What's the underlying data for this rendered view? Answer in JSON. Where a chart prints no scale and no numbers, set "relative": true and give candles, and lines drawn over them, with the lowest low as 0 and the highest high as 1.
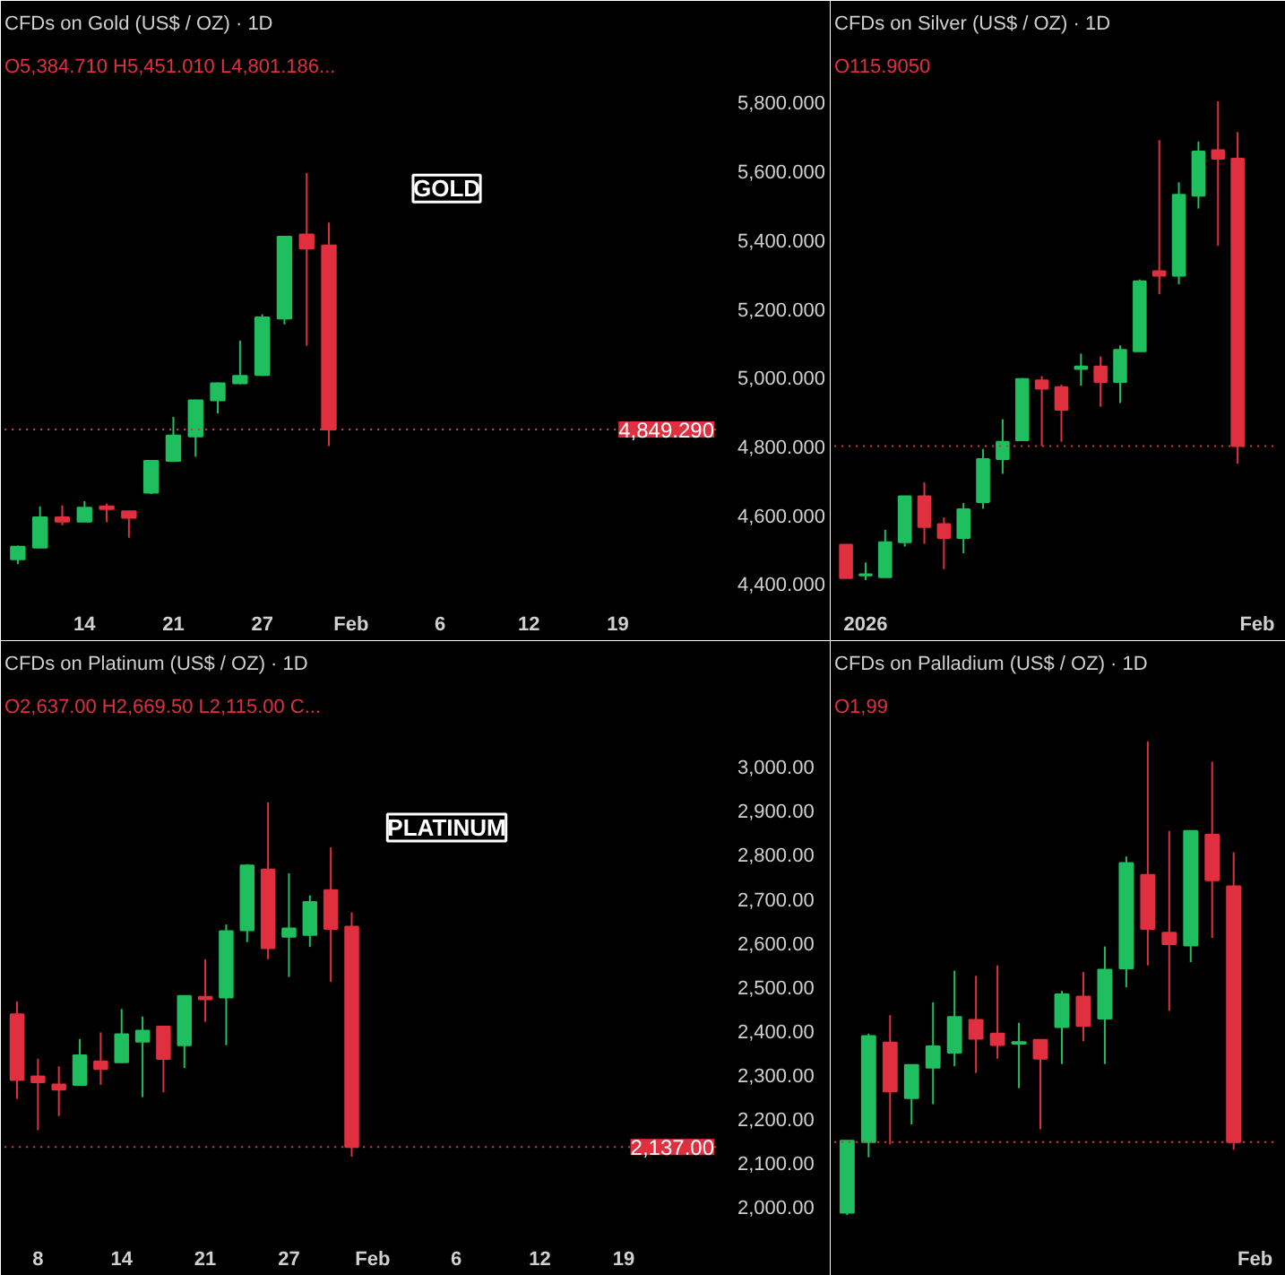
{
  "chart_data": [
    {
      "type": "candlestick",
      "title": "CFDs on Gold (US$ / OZ) · 1D",
      "subtitle": "O5,384.710 H5,451.010 L4,801.186...",
      "categories": [
        null,
        null,
        null,
        "14",
        null,
        null,
        null,
        "21",
        null,
        null,
        null,
        "27",
        null,
        null,
        null,
        "Feb",
        null,
        null,
        null,
        "6",
        null,
        null,
        null,
        "12",
        null,
        null,
        null,
        "19"
      ],
      "ohlc": [
        [
          4472,
          4512,
          4458,
          4509
        ],
        [
          4506,
          4626,
          4504,
          4594
        ],
        [
          4594,
          4629,
          4571,
          4582
        ],
        [
          4582,
          4641,
          4580,
          4622
        ],
        [
          4626,
          4634,
          4580,
          4618
        ],
        [
          4612,
          4614,
          4535,
          4593
        ],
        [
          4666,
          4761,
          4662,
          4758
        ],
        [
          4758,
          4886,
          4755,
          4832
        ],
        [
          4829,
          4936,
          4770,
          4934
        ],
        [
          4934,
          4986,
          4896,
          4984
        ],
        [
          4984,
          5108,
          4981,
          5005
        ],
        [
          5008,
          5184,
          5005,
          5175
        ],
        [
          5172,
          5412,
          5155,
          5410
        ],
        [
          5416,
          5595,
          5093,
          5375
        ],
        [
          5384.71,
          5451.01,
          4801.186,
          4849.29
        ],
        null,
        null,
        null,
        null,
        null,
        null,
        null,
        null,
        null,
        null,
        null,
        null,
        null
      ],
      "colors": [
        "#1fbf5f",
        "#1fbf5f",
        "#e0303f",
        "#1fbf5f",
        "#e0303f",
        "#e0303f",
        "#1fbf5f",
        "#1fbf5f",
        "#1fbf5f",
        "#1fbf5f",
        "#1fbf5f",
        "#1fbf5f",
        "#1fbf5f",
        "#e0303f",
        "#e0303f",
        null,
        null,
        null,
        null,
        null,
        null,
        null,
        null,
        null,
        null,
        null,
        null,
        null
      ],
      "ylim": [
        4370,
        5845
      ],
      "yticks": [
        {
          "value": 4400,
          "label": "4,400.000"
        },
        {
          "value": 4600,
          "label": "4,600.000"
        },
        {
          "value": 4800,
          "label": "4,800.000"
        },
        {
          "value": 5000,
          "label": "5,000.000"
        },
        {
          "value": 5200,
          "label": "5,200.000"
        },
        {
          "value": 5400,
          "label": "5,400.000"
        },
        {
          "value": 5600,
          "label": "5,600.000"
        },
        {
          "value": 5800,
          "label": "5,800.000"
        }
      ],
      "ref_lines": [
        {
          "axis": "y",
          "value": 4849.29,
          "label": "4,849.290",
          "color": "#e0303f",
          "line_style": "dotted"
        }
      ],
      "annotations": [
        "GOLD"
      ],
      "grid": false
    },
    {
      "type": "candlestick",
      "title": "CFDs on Silver (US$ / OZ) · 1D",
      "subtitle": "O115.9050",
      "relative": true,
      "categories": [
        null,
        "2026",
        null,
        null,
        null,
        null,
        null,
        null,
        null,
        null,
        null,
        null,
        null,
        null,
        null,
        null,
        null,
        null,
        null,
        null,
        null,
        "Feb"
      ],
      "ohlc": [
        [
          0.074,
          0.074,
          0.004,
          0.004
        ],
        [
          0.01,
          0.037,
          0,
          0.012
        ],
        [
          0.006,
          0.105,
          0.006,
          0.079
        ],
        [
          0.079,
          0.175,
          0.07,
          0.175
        ],
        [
          0.175,
          0.204,
          0.076,
          0.111
        ],
        [
          0.117,
          0.131,
          0.023,
          0.088
        ],
        [
          0.088,
          0.161,
          0.056,
          0.148
        ],
        [
          0.163,
          0.274,
          0.149,
          0.253
        ],
        [
          0.253,
          0.336,
          0.222,
          0.289
        ],
        [
          0.292,
          0.422,
          0.292,
          0.42
        ],
        [
          0.417,
          0.426,
          0.28,
          0.4
        ],
        [
          0.403,
          0.408,
          0.289,
          0.356
        ],
        [
          0.441,
          0.473,
          0.406,
          0.446
        ],
        [
          0.446,
          0.467,
          0.362,
          0.414
        ],
        [
          0.414,
          0.49,
          0.37,
          0.481
        ],
        [
          0.478,
          0.628,
          0.478,
          0.624
        ],
        [
          0.645,
          0.919,
          0.597,
          0.636
        ],
        [
          0.636,
          0.831,
          0.618,
          0.805
        ],
        [
          0.803,
          0.916,
          0.776,
          0.895
        ],
        [
          0.898,
          1,
          0.698,
          0.88
        ],
        [
          0.88,
          0.936,
          0.243,
          0.28
        ],
        null
      ],
      "colors": [
        "#e0303f",
        "#1fbf5f",
        "#1fbf5f",
        "#1fbf5f",
        "#e0303f",
        "#e0303f",
        "#1fbf5f",
        "#1fbf5f",
        "#1fbf5f",
        "#1fbf5f",
        "#e0303f",
        "#e0303f",
        "#1fbf5f",
        "#e0303f",
        "#1fbf5f",
        "#1fbf5f",
        "#e0303f",
        "#1fbf5f",
        "#1fbf5f",
        "#e0303f",
        "#e0303f",
        null
      ],
      "ref_lines": [
        {
          "axis": "y",
          "value": 0.28,
          "color": "#e0303f",
          "line_style": "dotted"
        }
      ],
      "tick_labels": "x",
      "grid": false
    },
    {
      "type": "candlestick",
      "title": "CFDs on Platinum (US$ / OZ) · 1D",
      "subtitle": "O2,637.00 H2,669.50 L2,115.00 C...",
      "categories": [
        null,
        "8",
        null,
        null,
        null,
        "14",
        null,
        null,
        null,
        "21",
        null,
        null,
        null,
        "27",
        null,
        null,
        null,
        "Feb",
        null,
        null,
        null,
        "6",
        null,
        null,
        null,
        "12",
        null,
        null,
        null,
        "19"
      ],
      "ohlc": [
        [
          2438,
          2467,
          2246,
          2289
        ],
        [
          2297,
          2337,
          2175,
          2284
        ],
        [
          2279,
          2320,
          2207,
          2267
        ],
        [
          2278,
          2382,
          2277,
          2345
        ],
        [
          2331,
          2397,
          2278,
          2314
        ],
        [
          2329,
          2450,
          2328,
          2393
        ],
        [
          2376,
          2433,
          2250,
          2401
        ],
        [
          2410,
          2411,
          2261,
          2337
        ],
        [
          2368,
          2481,
          2316,
          2480
        ],
        [
          2478,
          2563,
          2421,
          2472
        ],
        [
          2476,
          2642,
          2368,
          2627
        ],
        [
          2629,
          2779,
          2602,
          2776
        ],
        [
          2767,
          2919,
          2563,
          2588
        ],
        [
          2614,
          2758,
          2523,
          2633
        ],
        [
          2618,
          2708,
          2591,
          2693
        ],
        [
          2720,
          2817,
          2512,
          2632
        ],
        [
          2637,
          2669.5,
          2115,
          2137
        ],
        null,
        null,
        null,
        null,
        null,
        null,
        null,
        null,
        null,
        null,
        null,
        null,
        null
      ],
      "colors": [
        "#e0303f",
        "#e0303f",
        "#e0303f",
        "#1fbf5f",
        "#e0303f",
        "#1fbf5f",
        "#1fbf5f",
        "#e0303f",
        "#1fbf5f",
        "#e0303f",
        "#1fbf5f",
        "#1fbf5f",
        "#e0303f",
        "#1fbf5f",
        "#1fbf5f",
        "#e0303f",
        "#e0303f",
        null,
        null,
        null,
        null,
        null,
        null,
        null,
        null,
        null,
        null,
        null,
        null,
        null
      ],
      "ylim": [
        1950,
        3090
      ],
      "yticks": [
        {
          "value": 2000,
          "label": "2,000.00"
        },
        {
          "value": 2100,
          "label": "2,100.00"
        },
        {
          "value": 2200,
          "label": "2,200.00"
        },
        {
          "value": 2300,
          "label": "2,300.00"
        },
        {
          "value": 2400,
          "label": "2,400.00"
        },
        {
          "value": 2500,
          "label": "2,500.00"
        },
        {
          "value": 2600,
          "label": "2,600.00"
        },
        {
          "value": 2700,
          "label": "2,700.00"
        },
        {
          "value": 2800,
          "label": "2,800.00"
        },
        {
          "value": 2900,
          "label": "2,900.00"
        },
        {
          "value": 3000,
          "label": "3,000.00"
        }
      ],
      "ref_lines": [
        {
          "axis": "y",
          "value": 2137,
          "label": "2,137.00",
          "color": "#e0303f",
          "line_style": "dotted"
        }
      ],
      "annotations": [
        "PLATINUM"
      ],
      "grid": false
    },
    {
      "type": "candlestick",
      "title": "CFDs on Palladium (US$ / OZ) · 1D",
      "subtitle": "O1,99",
      "relative": true,
      "categories": [
        null,
        null,
        null,
        null,
        null,
        null,
        null,
        null,
        null,
        null,
        null,
        null,
        null,
        null,
        null,
        null,
        null,
        null,
        null,
        "Feb"
      ],
      "ohlc": [
        [
          0.005,
          0.157,
          0,
          0.157
        ],
        [
          0.154,
          0.383,
          0.122,
          0.378
        ],
        [
          0.364,
          0.422,
          0.149,
          0.261
        ],
        [
          0.247,
          0.317,
          0.191,
          0.317
        ],
        [
          0.311,
          0.449,
          0.234,
          0.356
        ],
        [
          0.343,
          0.516,
          0.314,
          0.418
        ],
        [
          0.412,
          0.505,
          0.3,
          0.372
        ],
        [
          0.383,
          0.527,
          0.33,
          0.359
        ],
        [
          0.362,
          0.406,
          0.268,
          0.365
        ],
        [
          0.37,
          0.37,
          0.181,
          0.33
        ],
        [
          0.397,
          0.473,
          0.319,
          0.466
        ],
        [
          0.461,
          0.513,
          0.367,
          0.399
        ],
        [
          0.415,
          0.567,
          0.319,
          0.518
        ],
        [
          0.521,
          0.757,
          0.481,
          0.743
        ],
        [
          0.718,
          1,
          0.527,
          0.604
        ],
        [
          0.596,
          0.811,
          0.431,
          0.572
        ],
        [
          0.569,
          0.811,
          0.534,
          0.811
        ],
        [
          0.803,
          0.957,
          0.585,
          0.707
        ],
        [
          0.694,
          0.766,
          0.138,
          0.154
        ],
        null
      ],
      "colors": [
        "#1fbf5f",
        "#1fbf5f",
        "#e0303f",
        "#1fbf5f",
        "#1fbf5f",
        "#1fbf5f",
        "#e0303f",
        "#e0303f",
        "#1fbf5f",
        "#e0303f",
        "#1fbf5f",
        "#e0303f",
        "#1fbf5f",
        "#1fbf5f",
        "#e0303f",
        "#e0303f",
        "#1fbf5f",
        "#e0303f",
        "#e0303f",
        null
      ],
      "ref_lines": [
        {
          "axis": "y",
          "value": 0.154,
          "color": "#e0303f",
          "line_style": "dotted"
        }
      ],
      "tick_labels": "x",
      "grid": false
    }
  ]
}
